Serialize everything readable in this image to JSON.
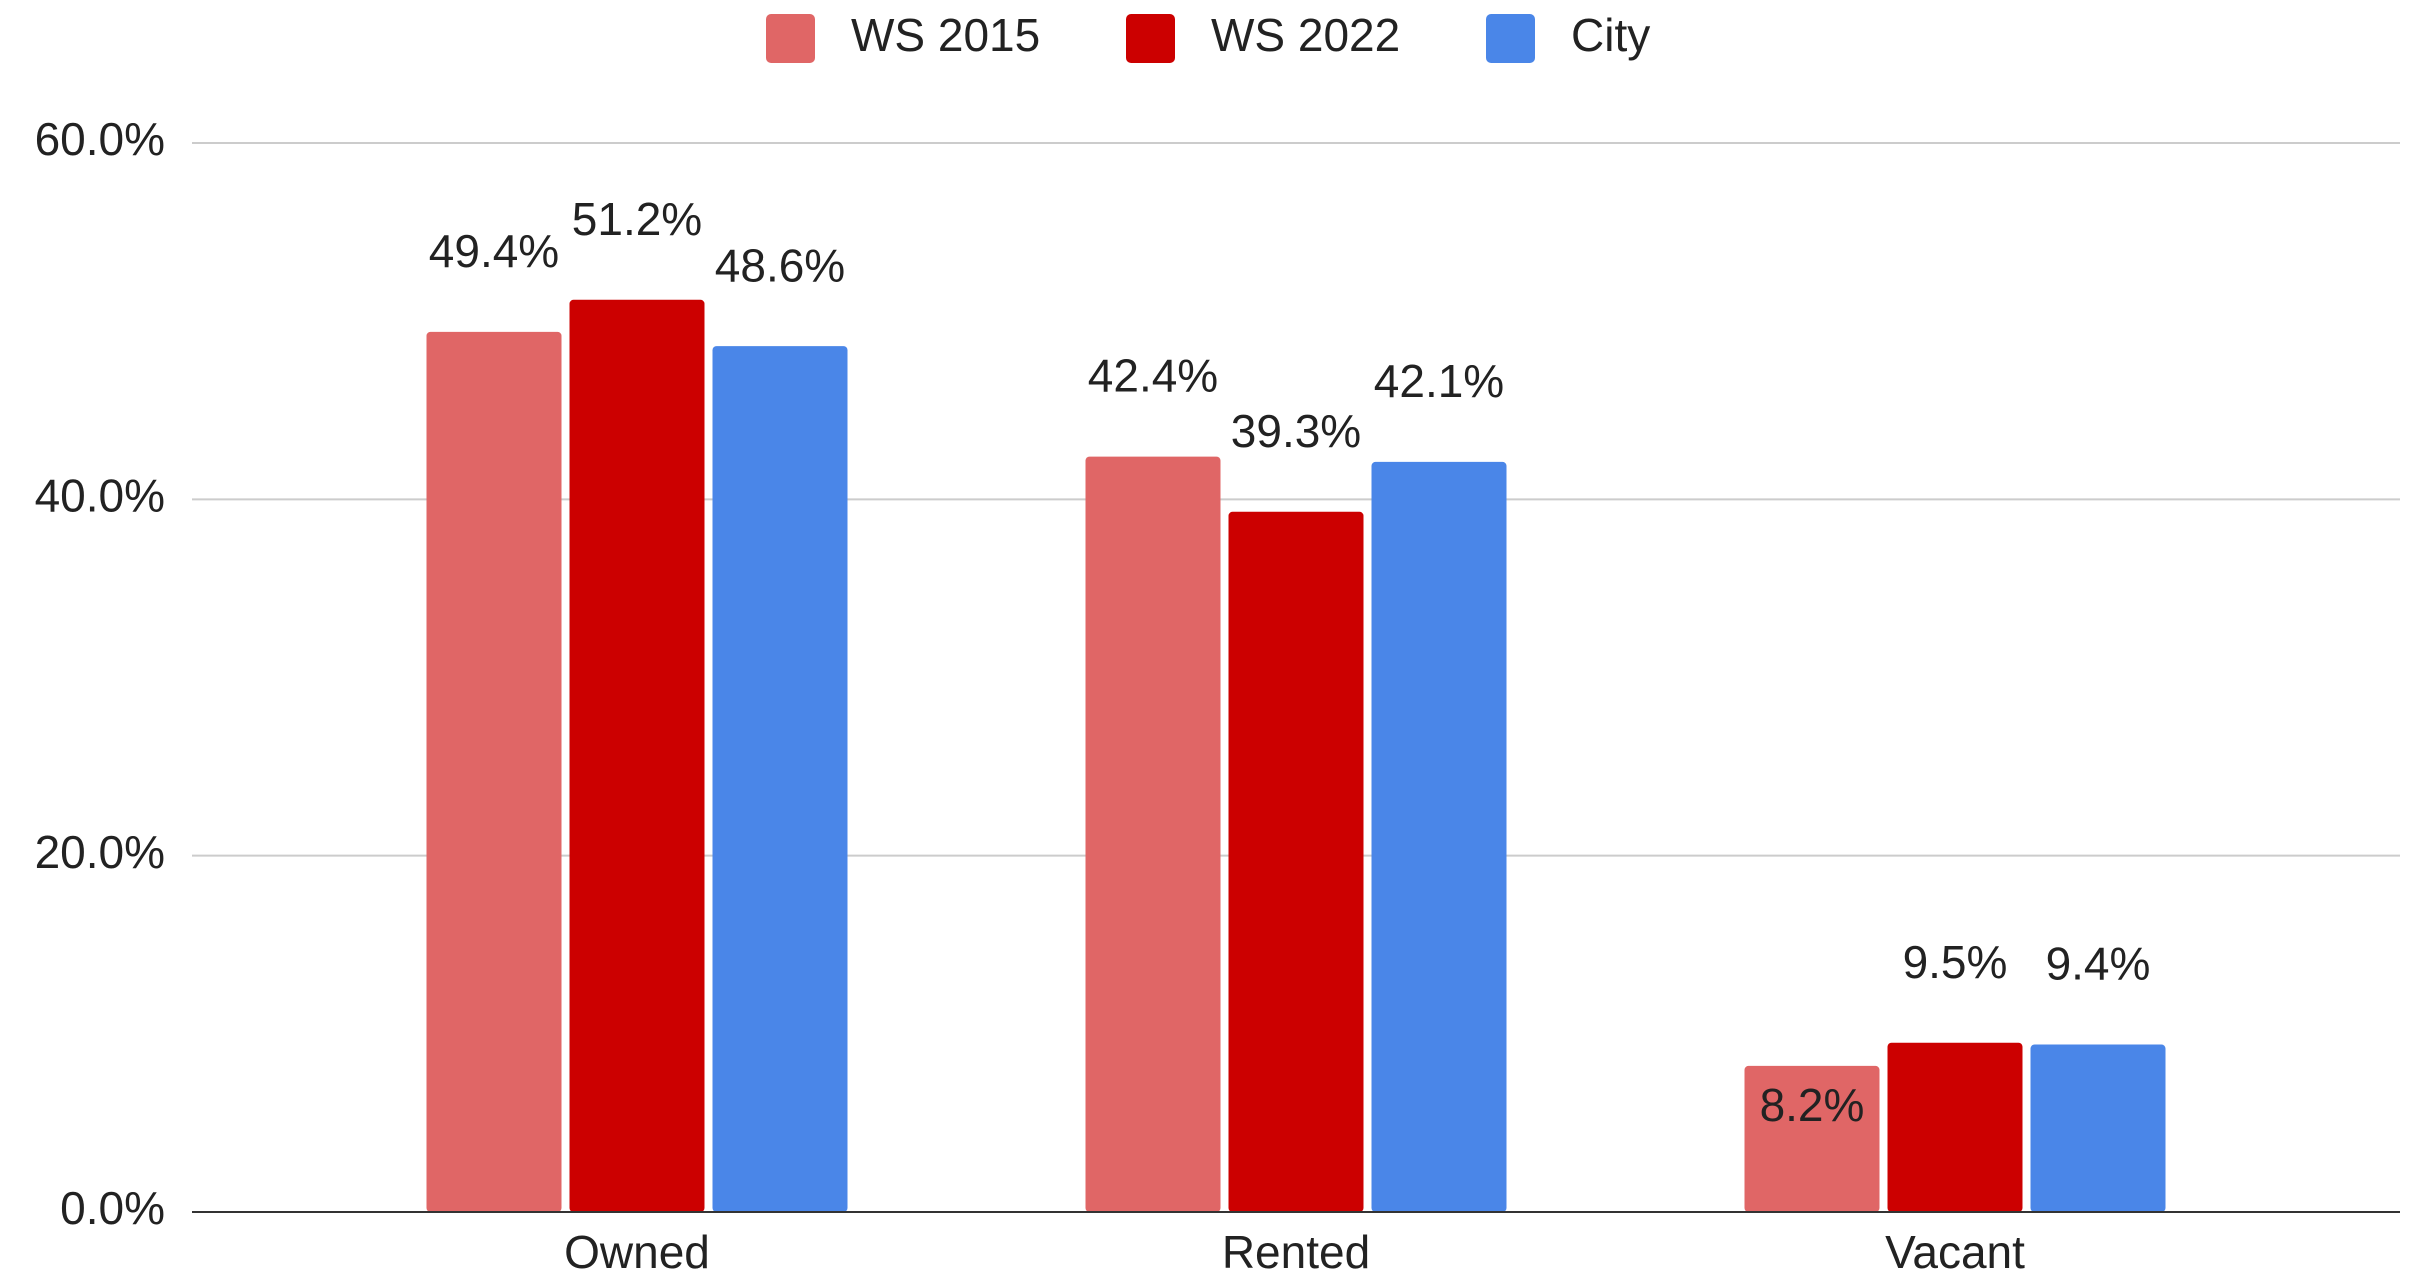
{
  "chart_data": {
    "type": "bar",
    "categories": [
      "Owned",
      "Rented",
      "Vacant"
    ],
    "series": [
      {
        "name": "WS 2015",
        "color": "#e06666",
        "values": [
          49.4,
          42.4,
          8.2
        ],
        "value_labels": [
          "49.4%",
          "42.4%",
          "8.2%"
        ]
      },
      {
        "name": "WS 2022",
        "color": "#cc0000",
        "values": [
          51.2,
          39.3,
          9.5
        ],
        "value_labels": [
          "51.2%",
          "39.3%",
          "9.5%"
        ]
      },
      {
        "name": "City",
        "color": "#4a86e8",
        "values": [
          48.6,
          42.1,
          9.4
        ],
        "value_labels": [
          "48.6%",
          "42.1%",
          "9.4%"
        ]
      }
    ],
    "ylim": [
      0,
      60
    ],
    "yticks": [
      {
        "value": 0,
        "label": "0.0%"
      },
      {
        "value": 20,
        "label": "20.0%"
      },
      {
        "value": 40,
        "label": "40.0%"
      },
      {
        "value": 60,
        "label": "60.0%"
      }
    ],
    "grid": true,
    "legend": "top"
  }
}
